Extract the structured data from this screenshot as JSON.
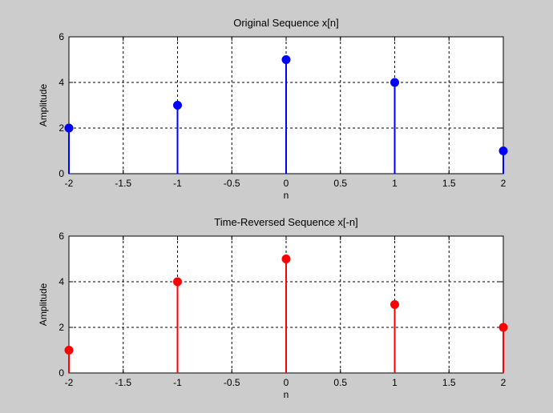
{
  "chart_data": [
    {
      "type": "stem",
      "title": "Original Sequence x[n]",
      "xlabel": "n",
      "ylabel": "Amplitude",
      "xlim": [
        -2,
        2
      ],
      "ylim": [
        0,
        6
      ],
      "xticks": [
        "-2",
        "-1.5",
        "-1",
        "-0.5",
        "0",
        "0.5",
        "1",
        "1.5",
        "2"
      ],
      "yticks": [
        "0",
        "2",
        "4",
        "6"
      ],
      "grid": true,
      "color": "#0000ff",
      "x": [
        -2,
        -1,
        0,
        1,
        2
      ],
      "values": [
        2,
        3,
        5,
        4,
        1
      ]
    },
    {
      "type": "stem",
      "title": "Time-Reversed Sequence x[-n]",
      "xlabel": "n",
      "ylabel": "Amplitude",
      "xlim": [
        -2,
        2
      ],
      "ylim": [
        0,
        6
      ],
      "xticks": [
        "-2",
        "-1.5",
        "-1",
        "-0.5",
        "0",
        "0.5",
        "1",
        "1.5",
        "2"
      ],
      "yticks": [
        "0",
        "2",
        "4",
        "6"
      ],
      "grid": true,
      "color": "#ff0000",
      "x": [
        -2,
        -1,
        0,
        1,
        2
      ],
      "values": [
        1,
        4,
        5,
        3,
        2
      ]
    }
  ]
}
